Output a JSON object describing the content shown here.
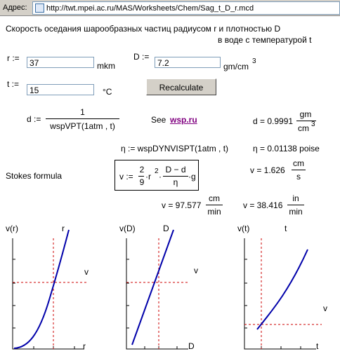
{
  "address": {
    "label": "Адрес:",
    "url": "http://twt.mpei.ac.ru/MAS/Worksheets/Chem/Sag_t_D_r.mcd"
  },
  "heading": {
    "line1": "Скорость оседания шарообразных частиц радиусом r и плотностью D",
    "line2": "в воде с температурой t"
  },
  "inputs": [
    {
      "label": "r :=",
      "value": "37",
      "unit": "mkm"
    },
    {
      "label": "D :=",
      "value": "7.2",
      "unit": "gm/cm",
      "unit_sup": "3"
    },
    {
      "label": "t :=",
      "value": "15",
      "unit": "°C"
    }
  ],
  "button": "Recalculate",
  "density_formula": {
    "lhs": "d :=",
    "numerator": "1",
    "denominator": "wspVPT(1atm , t)"
  },
  "see": {
    "text": "See",
    "link": "wsp.ru"
  },
  "density_result": {
    "lhs": "d = 0.9991",
    "unit_num": "gm",
    "unit_den": "cm",
    "unit_sup": "3"
  },
  "viscosity_formula": "η := wspDYNVISPT(1atm , t)",
  "viscosity_result": "η = 0.01138 poise",
  "stokes": {
    "label": "Stokes formula",
    "lhs": "v :=",
    "coef_num": "2",
    "coef_den": "9",
    "r": "·r",
    "r_sup": "2",
    "dot": "·",
    "frac_num": "D − d",
    "frac_den": "η",
    "g": "·g"
  },
  "results": [
    {
      "lhs": "v = 1.626",
      "num": "cm",
      "den": "s"
    },
    {
      "lhs": "v = 97.577",
      "num": "cm",
      "den": "min"
    },
    {
      "lhs": "v = 38.416",
      "num": "in",
      "den": "min"
    }
  ],
  "plots": [
    {
      "y_label": "v(r)",
      "curve_label": "r",
      "x_label": "r",
      "level_label": "v"
    },
    {
      "y_label": "v(D)",
      "curve_label": "D",
      "x_label": "D",
      "level_label": "v"
    },
    {
      "y_label": "v(t)",
      "curve_label": "t",
      "x_label": "t",
      "level_label": "v"
    }
  ]
}
